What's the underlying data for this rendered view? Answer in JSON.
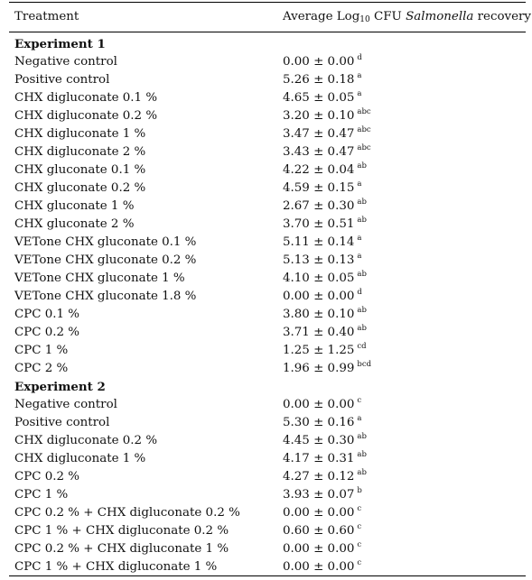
{
  "header": {
    "treatment": "Treatment",
    "value_prefix": "Average Log",
    "value_sub": "10",
    "value_mid": " CFU ",
    "value_italic": "Salmonella",
    "value_suffix": " recovery"
  },
  "rows": [
    {
      "type": "section",
      "treatment": "Experiment 1"
    },
    {
      "type": "data",
      "treatment": "Negative control",
      "value": "0.00 ± 0.00",
      "letters": "d"
    },
    {
      "type": "data",
      "treatment": "Positive control",
      "value": "5.26 ± 0.18",
      "letters": "a"
    },
    {
      "type": "data",
      "treatment": "CHX digluconate 0.1 %",
      "value": "4.65 ± 0.05",
      "letters": "a"
    },
    {
      "type": "data",
      "treatment": "CHX digluconate 0.2 %",
      "value": "3.20 ± 0.10",
      "letters": "abc"
    },
    {
      "type": "data",
      "treatment": "CHX digluconate 1 %",
      "value": "3.47 ± 0.47",
      "letters": "abc"
    },
    {
      "type": "data",
      "treatment": "CHX digluconate 2 %",
      "value": "3.43 ± 0.47",
      "letters": "abc"
    },
    {
      "type": "data",
      "treatment": "CHX gluconate 0.1 %",
      "value": "4.22 ± 0.04",
      "letters": "ab"
    },
    {
      "type": "data",
      "treatment": "CHX gluconate 0.2 %",
      "value": "4.59 ± 0.15",
      "letters": "a"
    },
    {
      "type": "data",
      "treatment": "CHX gluconate 1 %",
      "value": "2.67 ± 0.30",
      "letters": "ab"
    },
    {
      "type": "data",
      "treatment": "CHX gluconate 2 %",
      "value": "3.70 ± 0.51",
      "letters": "ab"
    },
    {
      "type": "data",
      "treatment": "VETone CHX gluconate 0.1 %",
      "value": "5.11 ± 0.14",
      "letters": "a"
    },
    {
      "type": "data",
      "treatment": "VETone CHX gluconate 0.2 %",
      "value": "5.13 ± 0.13",
      "letters": "a"
    },
    {
      "type": "data",
      "treatment": "VETone CHX gluconate 1 %",
      "value": "4.10 ± 0.05",
      "letters": "ab"
    },
    {
      "type": "data",
      "treatment": "VETone CHX gluconate 1.8 %",
      "value": "0.00 ± 0.00",
      "letters": "d"
    },
    {
      "type": "data",
      "treatment": "CPC 0.1 %",
      "value": "3.80 ± 0.10",
      "letters": "ab"
    },
    {
      "type": "data",
      "treatment": "CPC 0.2 %",
      "value": "3.71 ± 0.40",
      "letters": "ab"
    },
    {
      "type": "data",
      "treatment": "CPC 1 %",
      "value": "1.25 ± 1.25",
      "letters": "cd"
    },
    {
      "type": "data",
      "treatment": "CPC 2 %",
      "value": "1.96 ± 0.99",
      "letters": "bcd"
    },
    {
      "type": "section",
      "treatment": "Experiment 2"
    },
    {
      "type": "data",
      "treatment": "Negative control",
      "value": "0.00 ± 0.00",
      "letters": "c"
    },
    {
      "type": "data",
      "treatment": "Positive control",
      "value": "5.30 ± 0.16",
      "letters": "a"
    },
    {
      "type": "data",
      "treatment": "CHX digluconate 0.2 %",
      "value": "4.45 ± 0.30",
      "letters": "ab"
    },
    {
      "type": "data",
      "treatment": "CHX digluconate 1 %",
      "value": "4.17 ± 0.31",
      "letters": "ab"
    },
    {
      "type": "data",
      "treatment": "CPC 0.2 %",
      "value": "4.27 ± 0.12",
      "letters": "ab"
    },
    {
      "type": "data",
      "treatment": "CPC 1 %",
      "value": "3.93 ± 0.07",
      "letters": "b"
    },
    {
      "type": "data",
      "treatment": "CPC 0.2 % + CHX digluconate 0.2 %",
      "value": "0.00 ± 0.00",
      "letters": "c"
    },
    {
      "type": "data",
      "treatment": "CPC 1 % + CHX digluconate 0.2 %",
      "value": "0.60 ± 0.60",
      "letters": "c"
    },
    {
      "type": "data",
      "treatment": "CPC 0.2 % + CHX digluconate 1 %",
      "value": "0.00 ± 0.00",
      "letters": "c"
    },
    {
      "type": "data",
      "treatment": "CPC 1 % + CHX digluconate 1 %",
      "value": "0.00 ± 0.00",
      "letters": "c"
    }
  ]
}
